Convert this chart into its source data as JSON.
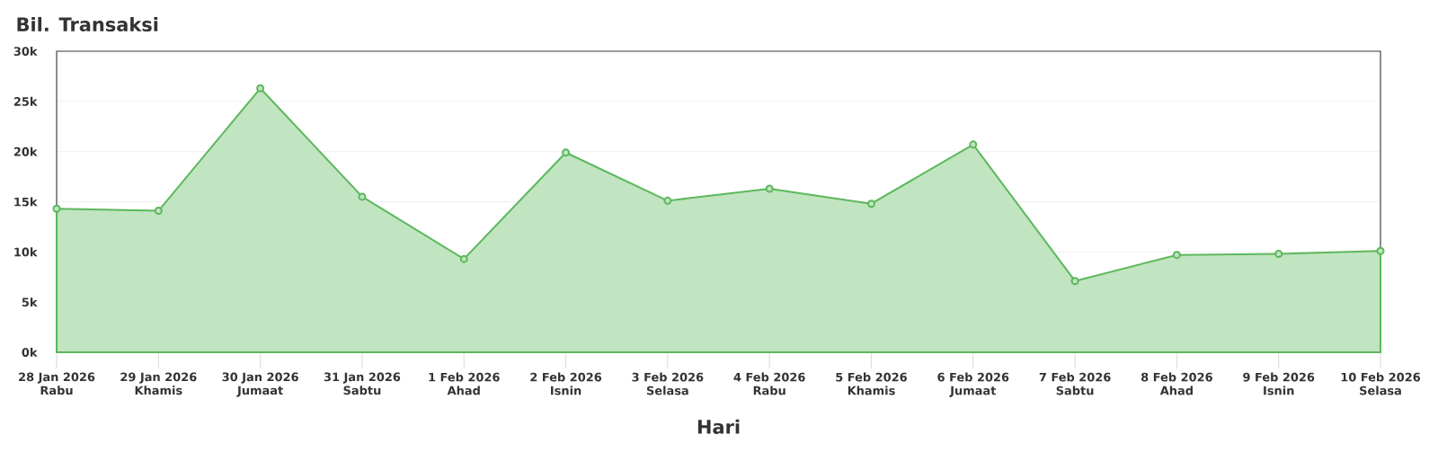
{
  "chart_data": {
    "type": "area",
    "title": "Bil. Transaksi",
    "xlabel": "Hari",
    "categories": [
      "28 Jan 2026 Rabu",
      "29 Jan 2026 Khamis",
      "30 Jan 2026 Jumaat",
      "31 Jan 2026 Sabtu",
      "1 Feb 2026 Ahad",
      "2 Feb 2026 Isnin",
      "3 Feb 2026 Selasa",
      "4 Feb 2026 Rabu",
      "5 Feb 2026 Khamis",
      "6 Feb 2026 Jumaat",
      "7 Feb 2026 Sabtu",
      "8 Feb 2026 Ahad",
      "9 Feb 2026 Isnin",
      "10 Feb 2026 Selasa"
    ],
    "values": [
      14300,
      14100,
      26300,
      15500,
      9300,
      19900,
      15100,
      16300,
      14800,
      20700,
      7100,
      9700,
      9800,
      10100
    ],
    "color": "#5cb85c",
    "ylim": [
      0,
      30000
    ],
    "yticks": [
      {
        "value": 0,
        "label": "0k"
      },
      {
        "value": 5000,
        "label": "5k"
      },
      {
        "value": 10000,
        "label": "10k"
      },
      {
        "value": 15000,
        "label": "15k"
      },
      {
        "value": 20000,
        "label": "20k"
      },
      {
        "value": 25000,
        "label": "25k"
      },
      {
        "value": 30000,
        "label": "30k"
      }
    ],
    "grid": "y",
    "marker": "circle"
  }
}
